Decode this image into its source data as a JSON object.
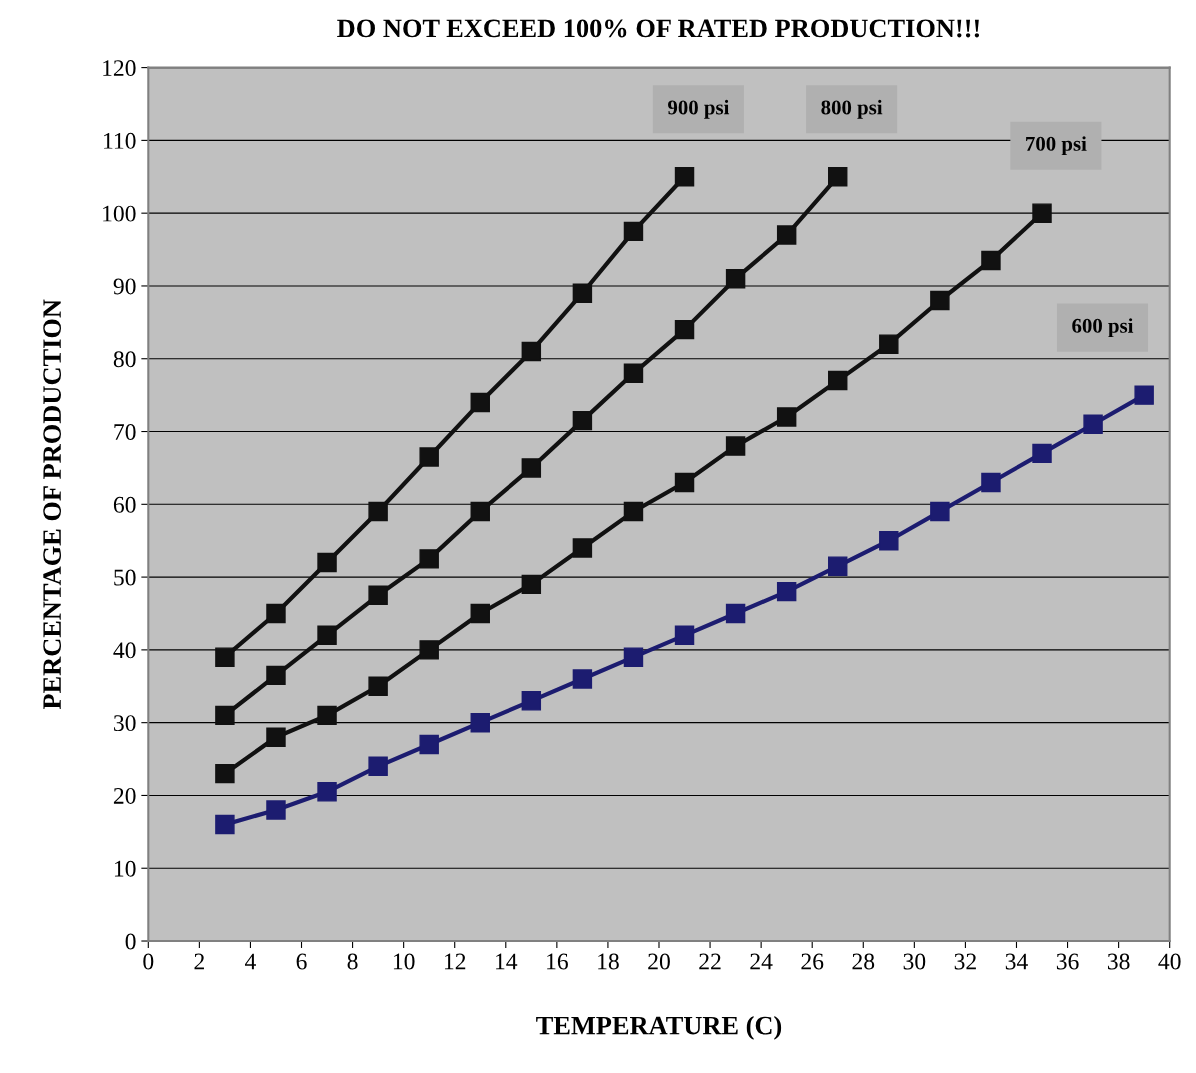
{
  "chart_data": {
    "type": "line",
    "title": "DO NOT EXCEED 100% OF RATED PRODUCTION!!!",
    "xlabel": "TEMPERATURE (C)",
    "ylabel": "PERCENTAGE OF PRODUCTION",
    "series": [
      {
        "name": "900 psi",
        "color": "#111111",
        "x": [
          3,
          5,
          7,
          9,
          11,
          13,
          15,
          17,
          19,
          21
        ],
        "values": [
          39,
          45,
          52,
          59,
          66.5,
          74,
          81,
          89,
          97.5,
          105
        ]
      },
      {
        "name": "800 psi",
        "color": "#111111",
        "x": [
          3,
          5,
          7,
          9,
          11,
          13,
          15,
          17,
          19,
          21,
          23,
          25,
          27
        ],
        "values": [
          31,
          36.5,
          42,
          47.5,
          52.5,
          59,
          65,
          71.5,
          78,
          84,
          91,
          97,
          105
        ]
      },
      {
        "name": "700 psi",
        "color": "#111111",
        "x": [
          3,
          5,
          7,
          9,
          11,
          13,
          15,
          17,
          19,
          21,
          23,
          25,
          27,
          29,
          31,
          33,
          35
        ],
        "values": [
          23,
          28,
          31,
          35,
          40,
          45,
          49,
          54,
          59,
          63,
          68,
          72,
          77,
          82,
          88,
          93.5,
          100
        ]
      },
      {
        "name": "600 psi",
        "color": "#1c1c70",
        "x": [
          3,
          5,
          7,
          9,
          11,
          13,
          15,
          17,
          19,
          21,
          23,
          25,
          27,
          29,
          31,
          33,
          35,
          37,
          39
        ],
        "values": [
          16,
          18,
          20.5,
          24,
          27,
          30,
          33,
          36,
          39,
          42,
          45,
          48,
          51.5,
          55,
          59,
          63,
          67,
          71,
          75
        ]
      }
    ],
    "xlim": [
      0,
      40
    ],
    "xticks": [
      0,
      2,
      4,
      6,
      8,
      10,
      12,
      14,
      16,
      18,
      20,
      22,
      24,
      26,
      28,
      30,
      32,
      34,
      36,
      38,
      40
    ],
    "ylim": [
      0,
      120
    ],
    "yticks": [
      0,
      10,
      20,
      30,
      40,
      50,
      60,
      70,
      80,
      90,
      100,
      110,
      120
    ],
    "grid": "y",
    "marker": "square",
    "line_style": "solid",
    "legend": false
  }
}
